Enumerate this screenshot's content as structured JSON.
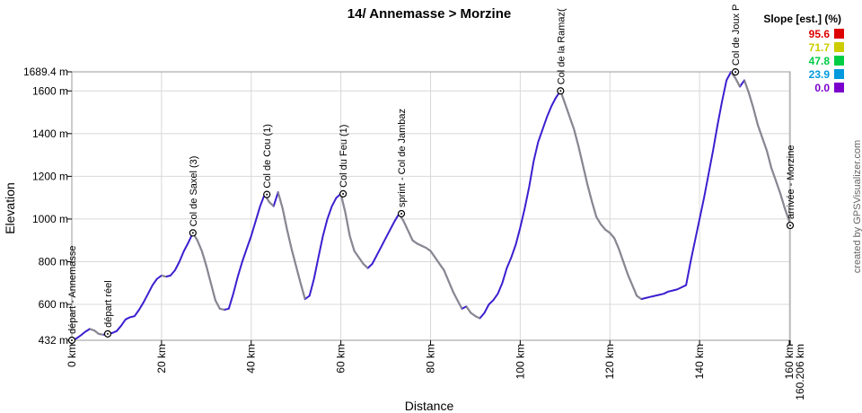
{
  "chart_data": {
    "type": "area",
    "title": "14/ Annemasse > Morzine",
    "xlabel": "Distance",
    "ylabel": "Elevation",
    "xlim": [
      0,
      160.206
    ],
    "ylim": [
      432,
      1689.4
    ],
    "grid": true,
    "x_ticks": [
      {
        "value": 0,
        "label": "0 km"
      },
      {
        "value": 20,
        "label": "20 km"
      },
      {
        "value": 40,
        "label": "40 km"
      },
      {
        "value": 60,
        "label": "60 km"
      },
      {
        "value": 80,
        "label": "80 km"
      },
      {
        "value": 100,
        "label": "100 km"
      },
      {
        "value": 120,
        "label": "120 km"
      },
      {
        "value": 140,
        "label": "140 km"
      },
      {
        "value": 160,
        "label": "160 km"
      },
      {
        "value": 160.206,
        "label": "160.206 km"
      }
    ],
    "y_ticks": [
      {
        "value": 432,
        "label": "432 m"
      },
      {
        "value": 600,
        "label": "600 m"
      },
      {
        "value": 800,
        "label": "800 m"
      },
      {
        "value": 1000,
        "label": "1000 m"
      },
      {
        "value": 1200,
        "label": "1200 m"
      },
      {
        "value": 1400,
        "label": "1400 m"
      },
      {
        "value": 1600,
        "label": "1600 m"
      },
      {
        "value": 1689.4,
        "label": "1689.4 m"
      }
    ],
    "profile": {
      "x": [
        0,
        1,
        2,
        3,
        4,
        5,
        6,
        7,
        8,
        9,
        10,
        11,
        12,
        13,
        14,
        15,
        16,
        17,
        18,
        19,
        20,
        21,
        22,
        23,
        24,
        25,
        26,
        27,
        28,
        29,
        30,
        31,
        32,
        33,
        34,
        35,
        36,
        37,
        38,
        39,
        40,
        41,
        42,
        43,
        44,
        45,
        46,
        47,
        48,
        49,
        50,
        51,
        52,
        53,
        54,
        55,
        56,
        57,
        58,
        59,
        60,
        61,
        62,
        63,
        64,
        65,
        66,
        67,
        68,
        69,
        70,
        71,
        72,
        73,
        74,
        75,
        76,
        77,
        78,
        79,
        80,
        81,
        82,
        83,
        84,
        85,
        86,
        87,
        88,
        89,
        90,
        91,
        92,
        93,
        94,
        95,
        96,
        97,
        98,
        99,
        100,
        101,
        102,
        103,
        104,
        105,
        106,
        107,
        108,
        109,
        110,
        111,
        112,
        113,
        114,
        115,
        116,
        117,
        118,
        119,
        120,
        121,
        122,
        123,
        124,
        125,
        126,
        127,
        128,
        129,
        130,
        131,
        132,
        133,
        134,
        135,
        136,
        137,
        138,
        139,
        140,
        141,
        142,
        143,
        144,
        145,
        146,
        147,
        148,
        149,
        150,
        151,
        152,
        153,
        154,
        155,
        156,
        157,
        158,
        159,
        160,
        160.206
      ],
      "y": [
        432,
        440,
        455,
        472,
        485,
        478,
        462,
        458,
        462,
        466,
        475,
        500,
        530,
        540,
        545,
        575,
        610,
        650,
        690,
        720,
        735,
        730,
        735,
        760,
        800,
        850,
        890,
        935,
        900,
        850,
        780,
        700,
        620,
        580,
        575,
        580,
        650,
        730,
        800,
        860,
        920,
        990,
        1060,
        1115,
        1080,
        1060,
        1125,
        1050,
        950,
        860,
        780,
        700,
        625,
        640,
        720,
        820,
        920,
        1000,
        1060,
        1100,
        1118,
        1030,
        920,
        850,
        820,
        790,
        770,
        790,
        830,
        870,
        910,
        950,
        990,
        1025,
        990,
        945,
        900,
        885,
        875,
        865,
        850,
        820,
        790,
        760,
        710,
        660,
        620,
        580,
        590,
        560,
        545,
        535,
        560,
        600,
        620,
        650,
        700,
        770,
        820,
        880,
        960,
        1050,
        1150,
        1270,
        1360,
        1420,
        1480,
        1530,
        1570,
        1600,
        1540,
        1480,
        1420,
        1340,
        1250,
        1160,
        1080,
        1010,
        975,
        950,
        935,
        910,
        860,
        800,
        740,
        690,
        640,
        625,
        630,
        635,
        640,
        645,
        650,
        660,
        665,
        670,
        680,
        690,
        800,
        900,
        1000,
        1100,
        1210,
        1320,
        1440,
        1550,
        1650,
        1689,
        1660,
        1620,
        1650,
        1590,
        1520,
        1440,
        1380,
        1320,
        1240,
        1180,
        1120,
        1050,
        990,
        970
      ]
    },
    "waypoints": [
      {
        "x": 0,
        "y": 432,
        "label": "départ - Annemasse"
      },
      {
        "x": 8,
        "y": 462,
        "label": "départ réel"
      },
      {
        "x": 27,
        "y": 935,
        "label": "Col de Saxel (3)"
      },
      {
        "x": 43.5,
        "y": 1115,
        "label": "Col de Cou (1)"
      },
      {
        "x": 60.5,
        "y": 1118,
        "label": "Col du Feu (1)"
      },
      {
        "x": 73.5,
        "y": 1025,
        "label": "sprint - Col de Jambaz"
      },
      {
        "x": 109,
        "y": 1600,
        "label": "Col de la Ramaz("
      },
      {
        "x": 148,
        "y": 1689,
        "label": "Col de Joux P"
      },
      {
        "x": 160.206,
        "y": 970,
        "label": "arrivée - Morzine"
      }
    ],
    "legend": {
      "title": "Slope [est.] (%)",
      "placement": "top-right",
      "entries": [
        {
          "label": "95.6",
          "color": "#dd0000"
        },
        {
          "label": "71.7",
          "color": "#cccc00"
        },
        {
          "label": "47.8",
          "color": "#00cc44"
        },
        {
          "label": "23.9",
          "color": "#0099dd"
        },
        {
          "label": "0.0",
          "color": "#7a00cc"
        }
      ]
    },
    "credit": "created by GPSVisualizer.com"
  }
}
